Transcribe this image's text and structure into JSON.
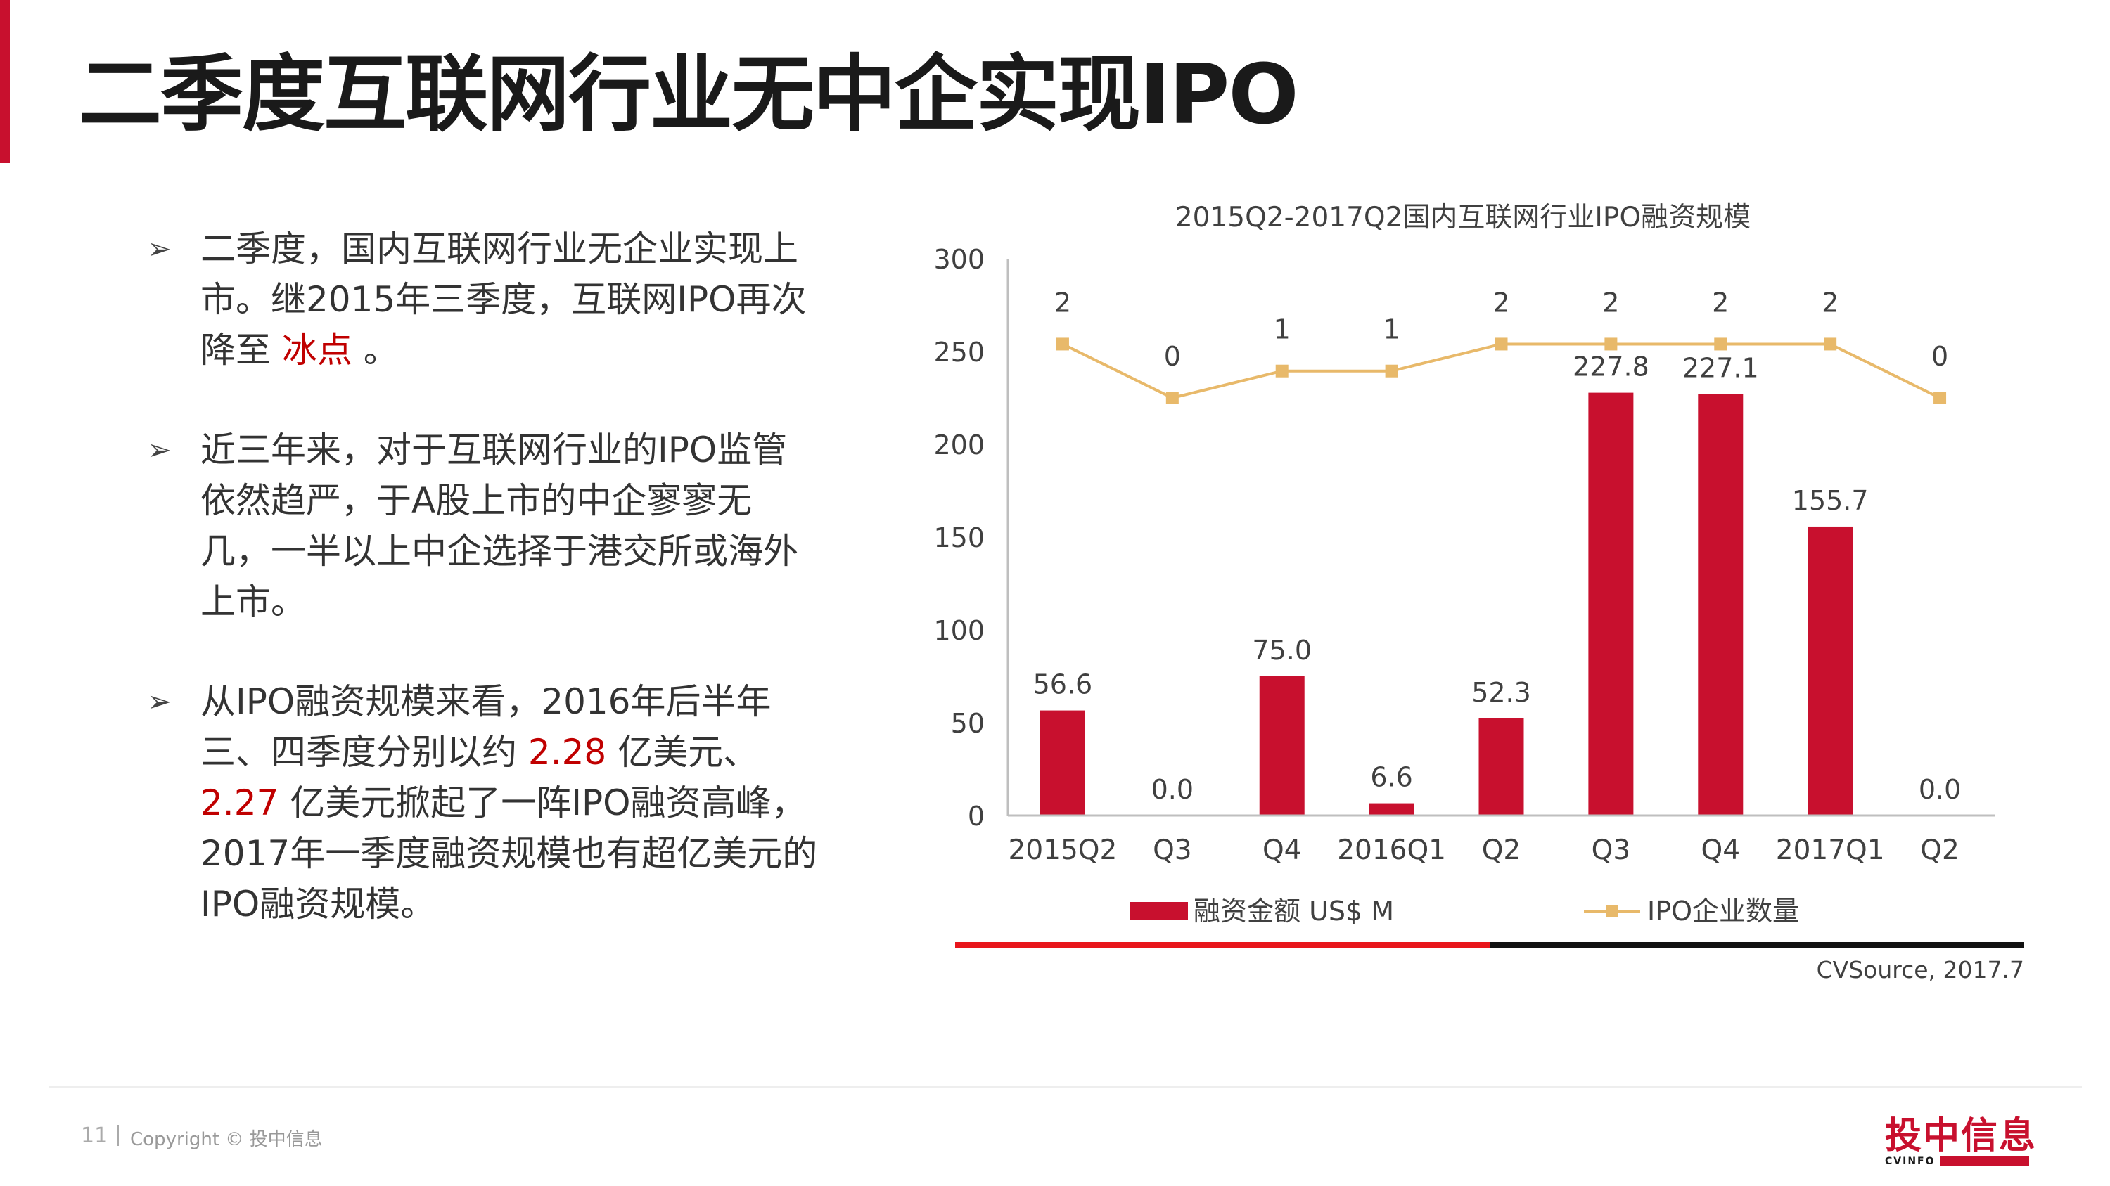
{
  "title": "二季度互联网行业无中企实现IPO",
  "bullets": [
    {
      "segments": [
        {
          "text": "二季度，国内互联网行业无企业实现上市。继2015年三季度，互联网IPO再次降至 ",
          "hl": false
        },
        {
          "text": "冰点",
          "hl": true
        },
        {
          "text": " 。",
          "hl": false
        }
      ]
    },
    {
      "segments": [
        {
          "text": "近三年来，对于互联网行业的IPO监管依然趋严，于A股上市的中企寥寥无几，一半以上中企选择于港交所或海外上市。",
          "hl": false
        }
      ]
    },
    {
      "segments": [
        {
          "text": "从IPO融资规模来看，2016年后半年三、四季度分别以约 ",
          "hl": false
        },
        {
          "text": "2.28",
          "hl": true
        },
        {
          "text": " 亿美元、",
          "hl": false
        },
        {
          "text": "2.27",
          "hl": true
        },
        {
          "text": " 亿美元掀起了一阵IPO融资高峰，2017年一季度融资规模也有超亿美元的IPO融资规模。",
          "hl": false
        }
      ]
    }
  ],
  "chart_data": {
    "type": "bar",
    "title": "2015Q2-2017Q2国内互联网行业IPO融资规模",
    "categories": [
      "2015Q2",
      "Q3",
      "Q4",
      "2016Q1",
      "Q2",
      "Q3",
      "Q4",
      "2017Q1",
      "Q2"
    ],
    "series": [
      {
        "name": "融资金额 US$ M",
        "type": "bar",
        "color": "#c8102e",
        "values": [
          56.6,
          0.0,
          75.0,
          6.6,
          52.3,
          227.8,
          227.1,
          155.7,
          0.0
        ],
        "labels": [
          "56.6",
          "0.0",
          "75.0",
          "6.6",
          "52.3",
          "227.8",
          "227.1",
          "155.7",
          "0.0"
        ]
      },
      {
        "name": "IPO企业数量",
        "type": "line",
        "color": "#e8b96a",
        "values": [
          2,
          0,
          1,
          1,
          2,
          2,
          2,
          2,
          0
        ],
        "labels": [
          "2",
          "0",
          "1",
          "1",
          "2",
          "2",
          "2",
          "2",
          "0"
        ]
      }
    ],
    "y_ticks": [
      "0",
      "50",
      "100",
      "150",
      "200",
      "250",
      "300"
    ],
    "ylim": [
      0,
      300
    ],
    "grid": false,
    "legend": "bottom"
  },
  "source": "CVSource, 2017.7",
  "footer": {
    "page": "11",
    "copyright": "Copyright © 投中信息"
  },
  "logo": {
    "text": "投中信息",
    "sub": "CVINFO"
  },
  "colors": {
    "accent": "#c8102e",
    "line": "#e8b96a",
    "highlight": "#c00000"
  }
}
